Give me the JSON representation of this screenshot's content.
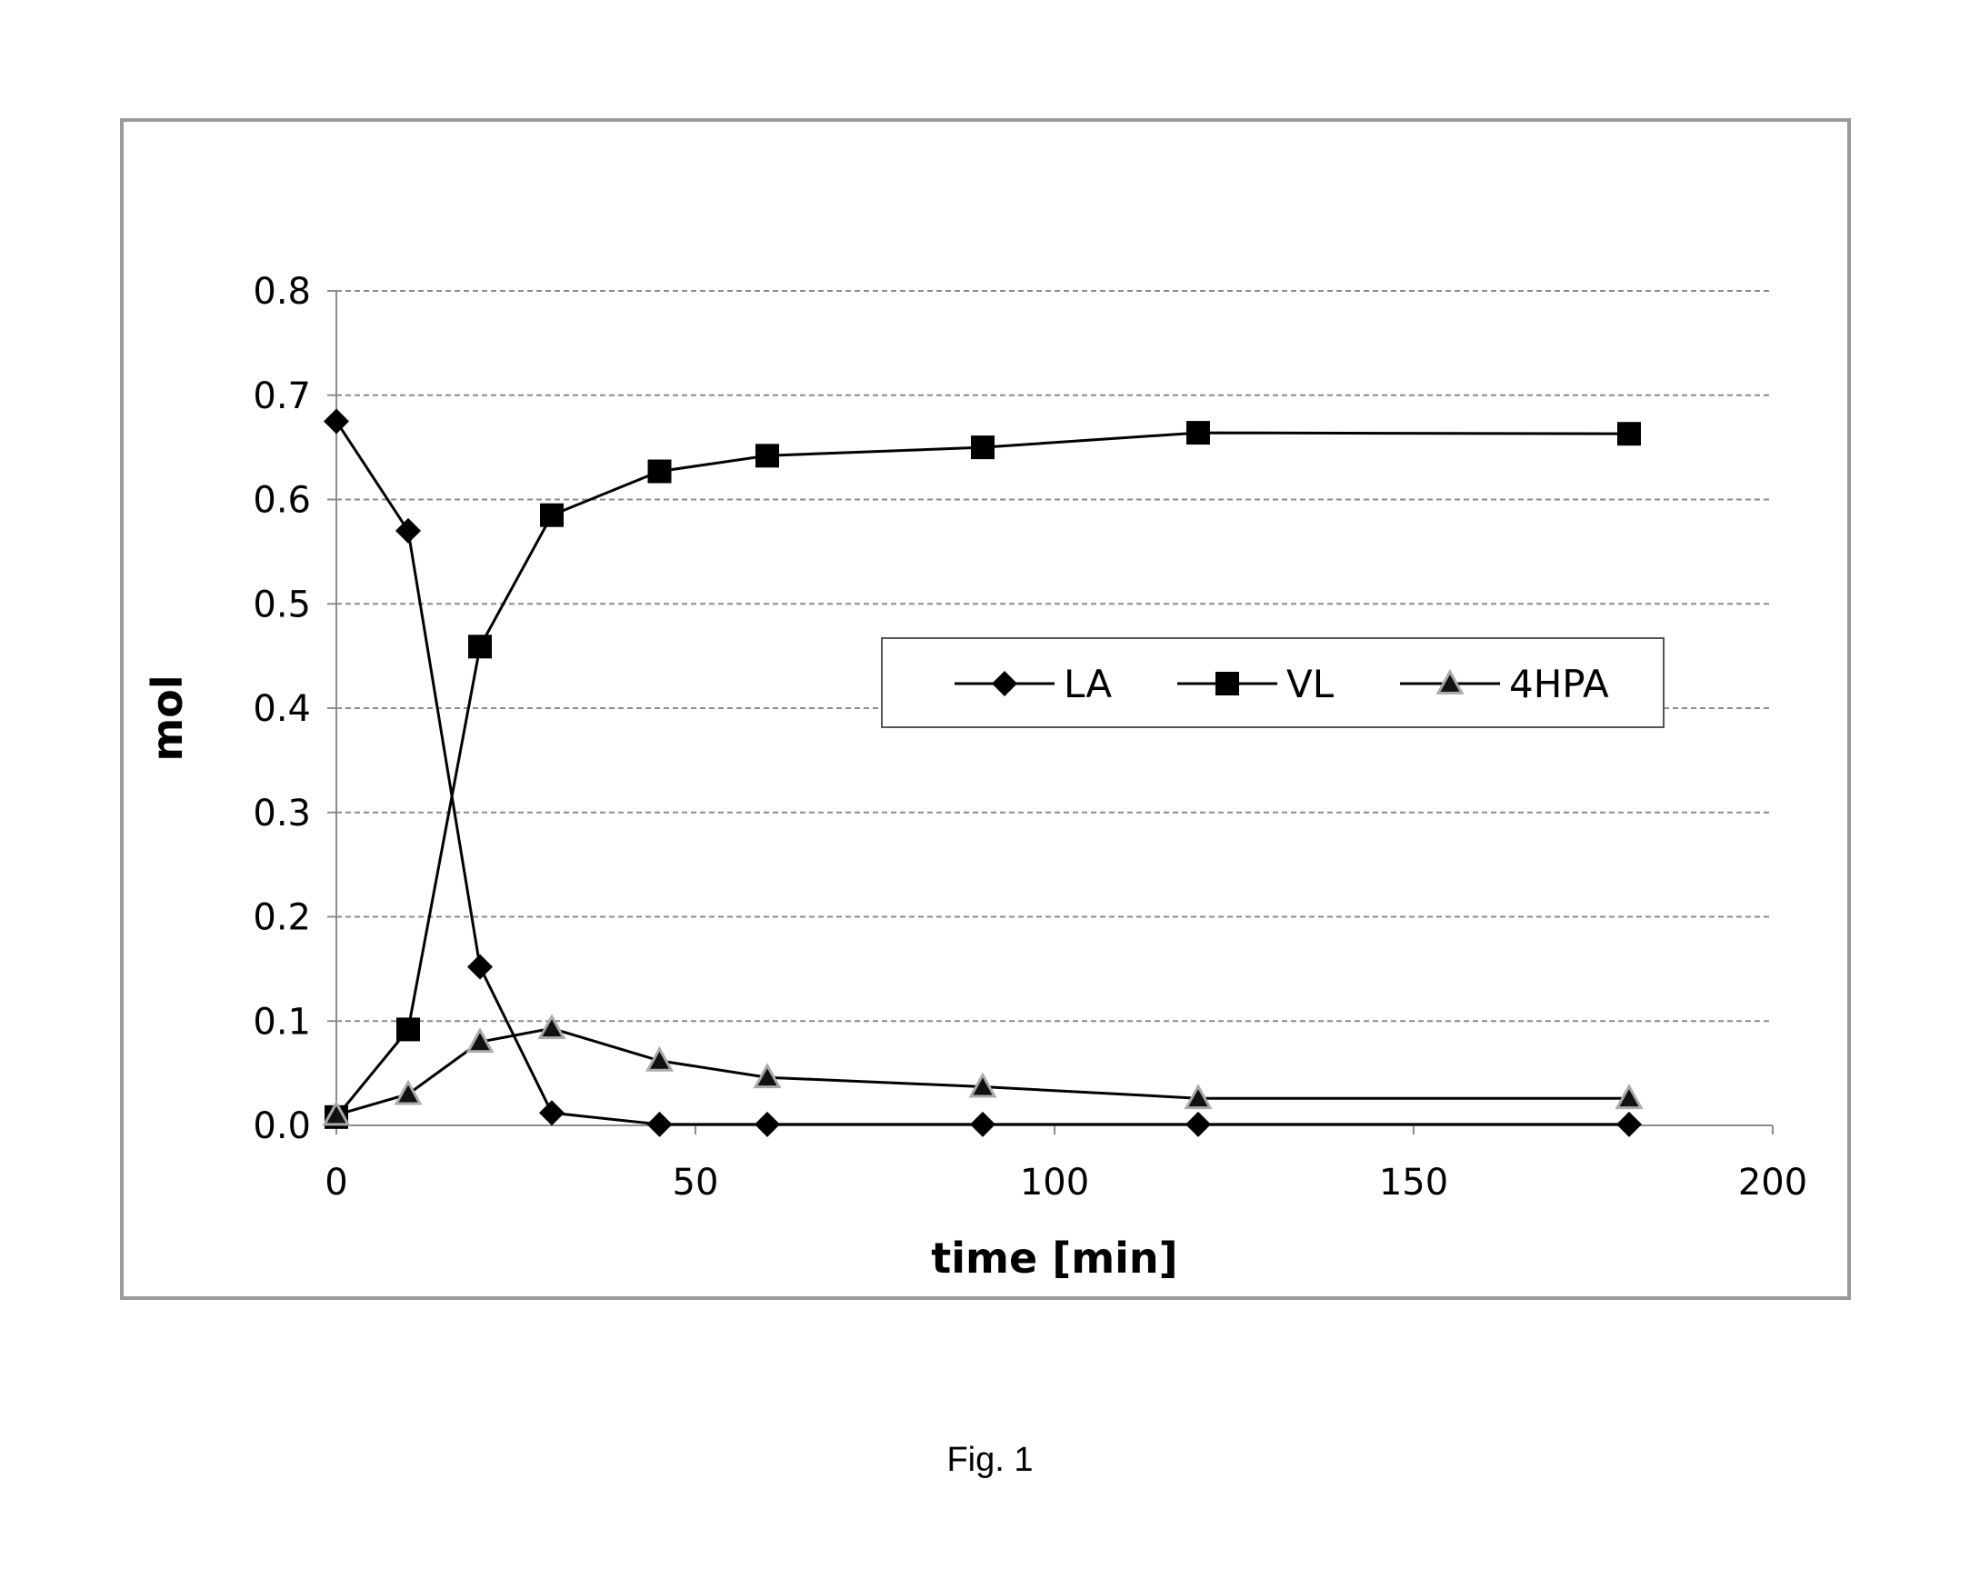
{
  "caption": "Fig. 1",
  "chart_data": {
    "type": "line",
    "xlabel": "time [min]",
    "ylabel": "mol",
    "xlim": [
      0,
      200
    ],
    "ylim": [
      0,
      0.8
    ],
    "x_ticks": [
      "0",
      "50",
      "100",
      "150",
      "200"
    ],
    "y_ticks": [
      "0.0",
      "0.1",
      "0.2",
      "0.3",
      "0.4",
      "0.5",
      "0.6",
      "0.7",
      "0.8"
    ],
    "x_tick_values": [
      0,
      50,
      100,
      150,
      200
    ],
    "y_tick_values": [
      0,
      0.1,
      0.2,
      0.3,
      0.4,
      0.5,
      0.6,
      0.7,
      0.8
    ],
    "grid": "horizontal dashed",
    "legend_position": "center-right",
    "x": [
      0,
      10,
      20,
      30,
      45,
      60,
      90,
      120,
      180
    ],
    "series": [
      {
        "name": "LA",
        "marker": "diamond",
        "values": [
          0.675,
          0.57,
          0.152,
          0.012,
          0.001,
          0.001,
          0.001,
          0.001,
          0.001
        ]
      },
      {
        "name": "VL",
        "marker": "square",
        "values": [
          0.008,
          0.092,
          0.459,
          0.585,
          0.627,
          0.642,
          0.65,
          0.664,
          0.663
        ]
      },
      {
        "name": "4HPA",
        "marker": "triangle",
        "values": [
          0.01,
          0.03,
          0.08,
          0.093,
          0.062,
          0.046,
          0.037,
          0.026,
          0.026
        ]
      }
    ]
  }
}
